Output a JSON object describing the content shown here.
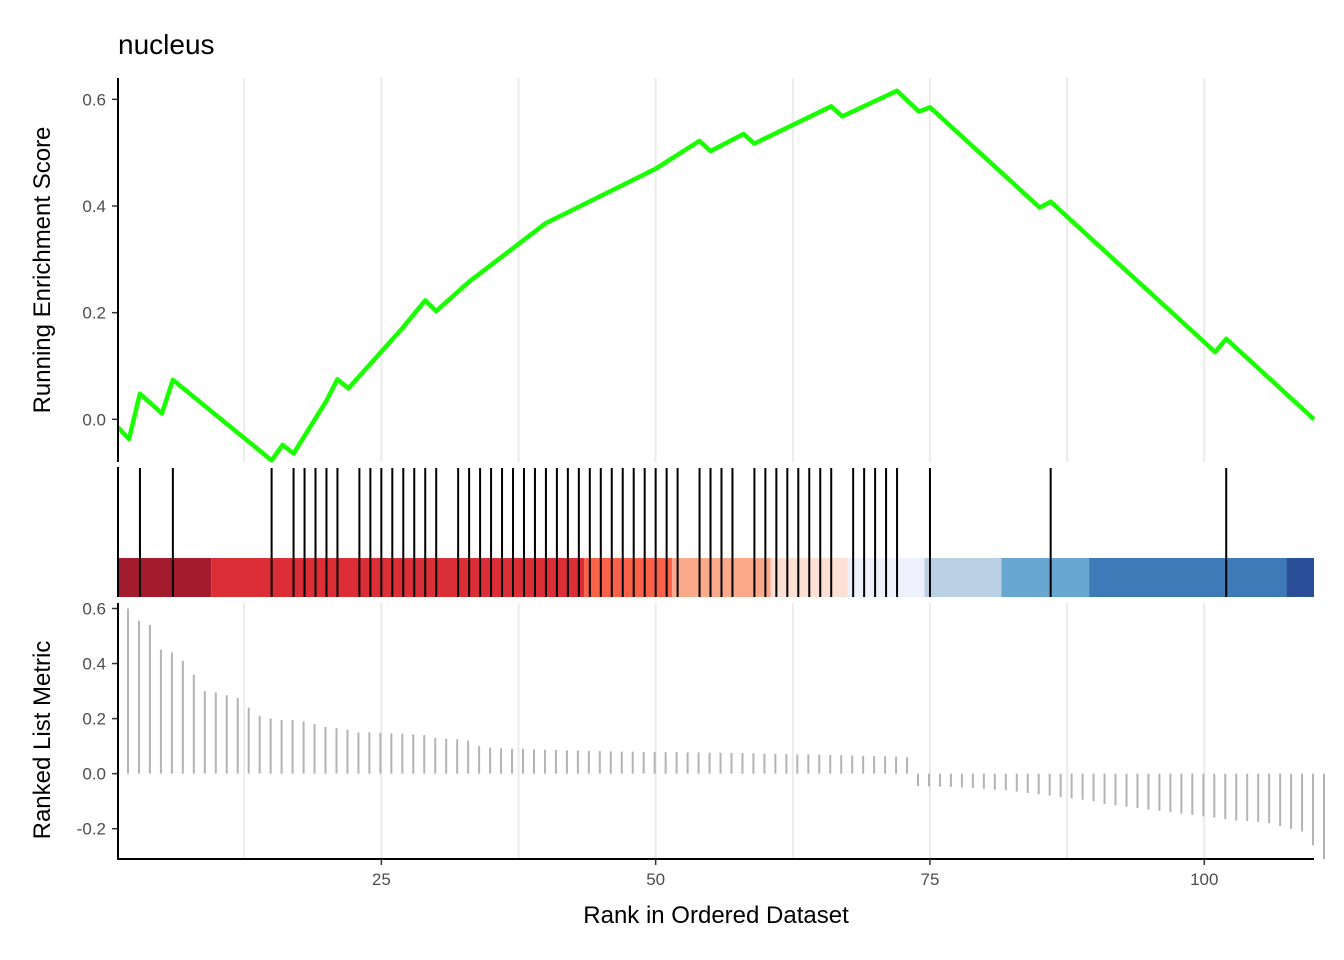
{
  "chart_data": {
    "type": "line",
    "title": "nucleus",
    "xlabel": "Rank in Ordered Dataset",
    "xlim": [
      1,
      110
    ],
    "x_ticks": [
      25,
      50,
      75,
      100
    ],
    "x_tick_labels": [
      "25",
      "50",
      "75",
      "100"
    ],
    "panels": {
      "running_score": {
        "ylabel": "Running Enrichment Score",
        "ylim": [
          -0.08,
          0.64
        ],
        "y_ticks": [
          0.0,
          0.2,
          0.4,
          0.6
        ],
        "y_tick_labels": [
          "0.0",
          "0.2",
          "0.4",
          "0.6"
        ],
        "line_color": "#1AFF00",
        "points": [
          [
            1,
            -0.015
          ],
          [
            2,
            -0.037
          ],
          [
            3,
            0.048
          ],
          [
            5,
            0.011
          ],
          [
            6,
            0.074
          ],
          [
            15,
            -0.077
          ],
          [
            16,
            -0.048
          ],
          [
            17,
            -0.064
          ],
          [
            20,
            0.035
          ],
          [
            21,
            0.075
          ],
          [
            22,
            0.058
          ],
          [
            27,
            0.173
          ],
          [
            29,
            0.223
          ],
          [
            30,
            0.203
          ],
          [
            33,
            0.258
          ],
          [
            40,
            0.368
          ],
          [
            50,
            0.47
          ],
          [
            54,
            0.522
          ],
          [
            55,
            0.503
          ],
          [
            58,
            0.535
          ],
          [
            59,
            0.517
          ],
          [
            66,
            0.587
          ],
          [
            67,
            0.568
          ],
          [
            72,
            0.616
          ],
          [
            74,
            0.577
          ],
          [
            75,
            0.585
          ],
          [
            85,
            0.397
          ],
          [
            86,
            0.408
          ],
          [
            101,
            0.126
          ],
          [
            102,
            0.151
          ],
          [
            110,
            0.0
          ]
        ]
      },
      "hits": {
        "positions": [
          3,
          6,
          15,
          17,
          18,
          19,
          20,
          21,
          23,
          24,
          25,
          26,
          27,
          28,
          29,
          30,
          32,
          33,
          34,
          35,
          36,
          37,
          38,
          39,
          40,
          41,
          42,
          43,
          44,
          45,
          46,
          47,
          48,
          49,
          50,
          51,
          52,
          54,
          55,
          56,
          57,
          59,
          60,
          61,
          62,
          63,
          64,
          65,
          66,
          68,
          69,
          70,
          71,
          72,
          75,
          86,
          102
        ],
        "color_band": [
          {
            "from": 0.5,
            "to": 9.5,
            "color": "#A31C2E"
          },
          {
            "from": 9.5,
            "to": 43.5,
            "color": "#DB2E36"
          },
          {
            "from": 43.5,
            "to": 51.5,
            "color": "#FB6249"
          },
          {
            "from": 51.5,
            "to": 60.5,
            "color": "#FBA98B"
          },
          {
            "from": 60.5,
            "to": 67.5,
            "color": "#FCE0D3"
          },
          {
            "from": 67.5,
            "to": 74.5,
            "color": "#EEF0FC"
          },
          {
            "from": 74.5,
            "to": 81.5,
            "color": "#BAD1E5"
          },
          {
            "from": 81.5,
            "to": 89.5,
            "color": "#68A7D2"
          },
          {
            "from": 89.5,
            "to": 107.5,
            "color": "#3E7AB8"
          },
          {
            "from": 107.5,
            "to": 110.5,
            "color": "#2A4F98"
          }
        ]
      },
      "ranked_metric": {
        "ylabel": "Ranked List Metric",
        "ylim": [
          -0.31,
          0.62
        ],
        "y_ticks": [
          -0.2,
          0.0,
          0.2,
          0.4,
          0.6
        ],
        "y_tick_labels": [
          "-0.2",
          "0.0",
          "0.2",
          "0.4",
          "0.6"
        ],
        "bar_color": "#B3B3B3",
        "values": [
          0.6,
          0.555,
          0.54,
          0.45,
          0.44,
          0.41,
          0.36,
          0.3,
          0.295,
          0.285,
          0.275,
          0.24,
          0.21,
          0.2,
          0.195,
          0.195,
          0.19,
          0.18,
          0.17,
          0.165,
          0.16,
          0.15,
          0.15,
          0.148,
          0.146,
          0.145,
          0.143,
          0.14,
          0.13,
          0.127,
          0.125,
          0.12,
          0.1,
          0.095,
          0.092,
          0.09,
          0.09,
          0.088,
          0.087,
          0.086,
          0.085,
          0.084,
          0.083,
          0.082,
          0.081,
          0.08,
          0.08,
          0.079,
          0.079,
          0.078,
          0.078,
          0.077,
          0.077,
          0.076,
          0.076,
          0.075,
          0.075,
          0.074,
          0.073,
          0.072,
          0.071,
          0.07,
          0.07,
          0.069,
          0.068,
          0.067,
          0.066,
          0.065,
          0.064,
          0.063,
          0.062,
          0.06,
          -0.045,
          -0.046,
          -0.047,
          -0.048,
          -0.05,
          -0.052,
          -0.055,
          -0.058,
          -0.06,
          -0.065,
          -0.07,
          -0.075,
          -0.08,
          -0.085,
          -0.09,
          -0.095,
          -0.1,
          -0.11,
          -0.115,
          -0.12,
          -0.125,
          -0.13,
          -0.135,
          -0.14,
          -0.145,
          -0.15,
          -0.155,
          -0.16,
          -0.165,
          -0.17,
          -0.172,
          -0.175,
          -0.18,
          -0.19,
          -0.2,
          -0.21,
          -0.26,
          -0.31
        ]
      }
    }
  }
}
